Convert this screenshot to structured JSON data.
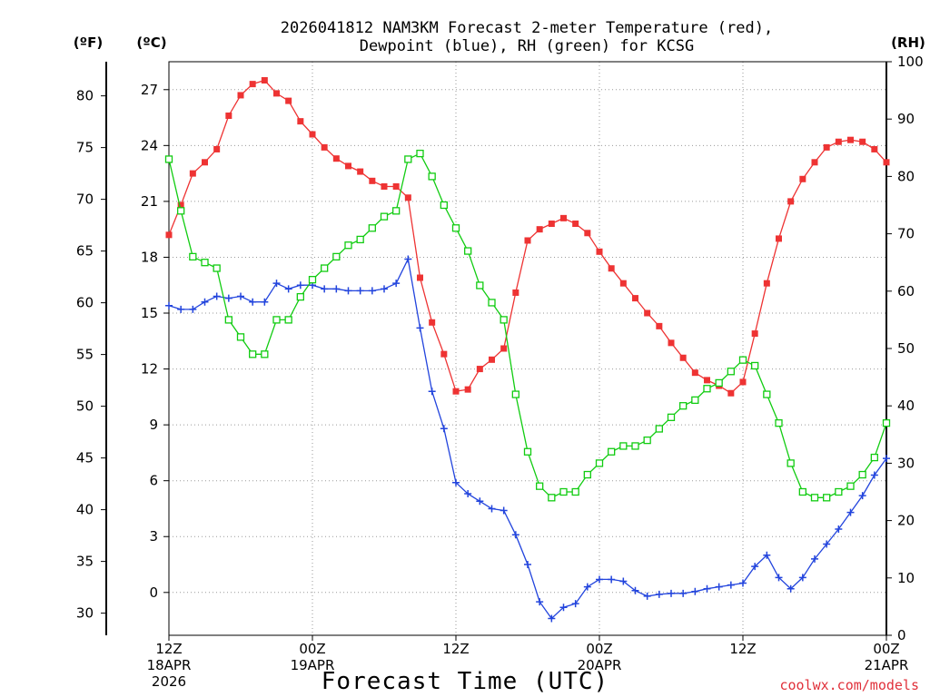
{
  "chart_data": {
    "type": "line",
    "title_line1": "2026041812 NAM3KM Forecast 2-meter Temperature (red),",
    "title_line2": "Dewpoint (blue), RH (green) for KCSG",
    "xlabel": "Forecast Time (UTC)",
    "credit": "coolwx.com/models",
    "units": {
      "fahrenheit": "(ºF)",
      "celsius": "(ºC)",
      "rh": "(RH)"
    },
    "xlim_hours": [
      0,
      60
    ],
    "x_ticks": [
      {
        "hour": 0,
        "line1": "12Z",
        "line2": "18APR",
        "line3": "2026"
      },
      {
        "hour": 12,
        "line1": "00Z",
        "line2": "19APR",
        "line3": ""
      },
      {
        "hour": 24,
        "line1": "12Z",
        "line2": "",
        "line3": ""
      },
      {
        "hour": 36,
        "line1": "00Z",
        "line2": "20APR",
        "line3": ""
      },
      {
        "hour": 48,
        "line1": "12Z",
        "line2": "",
        "line3": ""
      },
      {
        "hour": 60,
        "line1": "00Z",
        "line2": "21APR",
        "line3": ""
      }
    ],
    "temp_c_axis": {
      "ylim": [
        -2.3,
        28.5
      ],
      "ticks": [
        0,
        3,
        6,
        9,
        12,
        15,
        18,
        21,
        24,
        27
      ]
    },
    "temp_f_axis": {
      "ticks": [
        30,
        35,
        40,
        45,
        50,
        55,
        60,
        65,
        70,
        75,
        80
      ]
    },
    "rh_axis": {
      "ylim": [
        0,
        100
      ],
      "ticks": [
        0,
        10,
        20,
        30,
        40,
        50,
        60,
        70,
        80,
        90,
        100
      ]
    },
    "hours": [
      0,
      1,
      2,
      3,
      4,
      5,
      6,
      7,
      8,
      9,
      10,
      11,
      12,
      13,
      14,
      15,
      16,
      17,
      18,
      19,
      20,
      21,
      22,
      23,
      24,
      25,
      26,
      27,
      28,
      29,
      30,
      31,
      32,
      33,
      34,
      35,
      36,
      37,
      38,
      39,
      40,
      41,
      42,
      43,
      44,
      45,
      46,
      47,
      48,
      49,
      50,
      51,
      52,
      53,
      54,
      55,
      56,
      57,
      58,
      59,
      60
    ],
    "series": [
      {
        "name": "Temperature",
        "units": "C",
        "color": "#ee3333",
        "marker": "filled-square",
        "values": [
          19.2,
          20.8,
          22.5,
          23.1,
          23.8,
          25.6,
          26.7,
          27.3,
          27.5,
          26.8,
          26.4,
          25.3,
          24.6,
          23.9,
          23.3,
          22.9,
          22.6,
          22.1,
          21.8,
          21.8,
          21.2,
          16.9,
          14.5,
          12.8,
          10.8,
          10.9,
          12.0,
          12.5,
          13.1,
          16.1,
          18.9,
          19.5,
          19.8,
          20.1,
          19.8,
          19.3,
          18.3,
          17.4,
          16.6,
          15.8,
          15.0,
          14.3,
          13.4,
          12.6,
          11.8,
          11.4,
          11.1,
          10.7,
          11.3,
          13.9,
          16.6,
          19.0,
          21.0,
          22.2,
          23.1,
          23.9,
          24.2,
          24.3,
          24.2,
          23.8,
          23.1
        ]
      },
      {
        "name": "Dewpoint",
        "units": "C",
        "color": "#2244dd",
        "marker": "plus",
        "values": [
          15.4,
          15.2,
          15.2,
          15.6,
          15.9,
          15.8,
          15.9,
          15.6,
          15.6,
          16.6,
          16.3,
          16.5,
          16.5,
          16.3,
          16.3,
          16.2,
          16.2,
          16.2,
          16.3,
          16.6,
          17.9,
          14.2,
          10.8,
          8.8,
          5.9,
          5.3,
          4.9,
          4.5,
          4.4,
          3.1,
          1.5,
          -0.5,
          -1.4,
          -0.8,
          -0.6,
          0.3,
          0.7,
          0.7,
          0.6,
          0.1,
          -0.2,
          -0.1,
          -0.05,
          -0.05,
          0.05,
          0.2,
          0.3,
          0.4,
          0.5,
          1.4,
          2.0,
          0.8,
          0.2,
          0.8,
          1.8,
          2.6,
          3.4,
          4.3,
          5.2,
          6.3,
          7.2
        ]
      },
      {
        "name": "Relative Humidity",
        "units": "%",
        "color": "#11cc11",
        "marker": "open-square",
        "values": [
          83,
          74,
          66,
          65,
          64,
          55,
          52,
          49,
          49,
          55,
          55,
          59,
          62,
          64,
          66,
          68,
          69,
          71,
          73,
          74,
          83,
          84,
          80,
          75,
          71,
          67,
          61,
          58,
          55,
          42,
          32,
          26,
          24,
          25,
          25,
          28,
          30,
          32,
          33,
          33,
          34,
          36,
          38,
          40,
          41,
          43,
          44,
          46,
          48,
          47,
          42,
          37,
          30,
          25,
          24,
          24,
          25,
          26,
          28,
          31,
          37
        ]
      }
    ]
  }
}
